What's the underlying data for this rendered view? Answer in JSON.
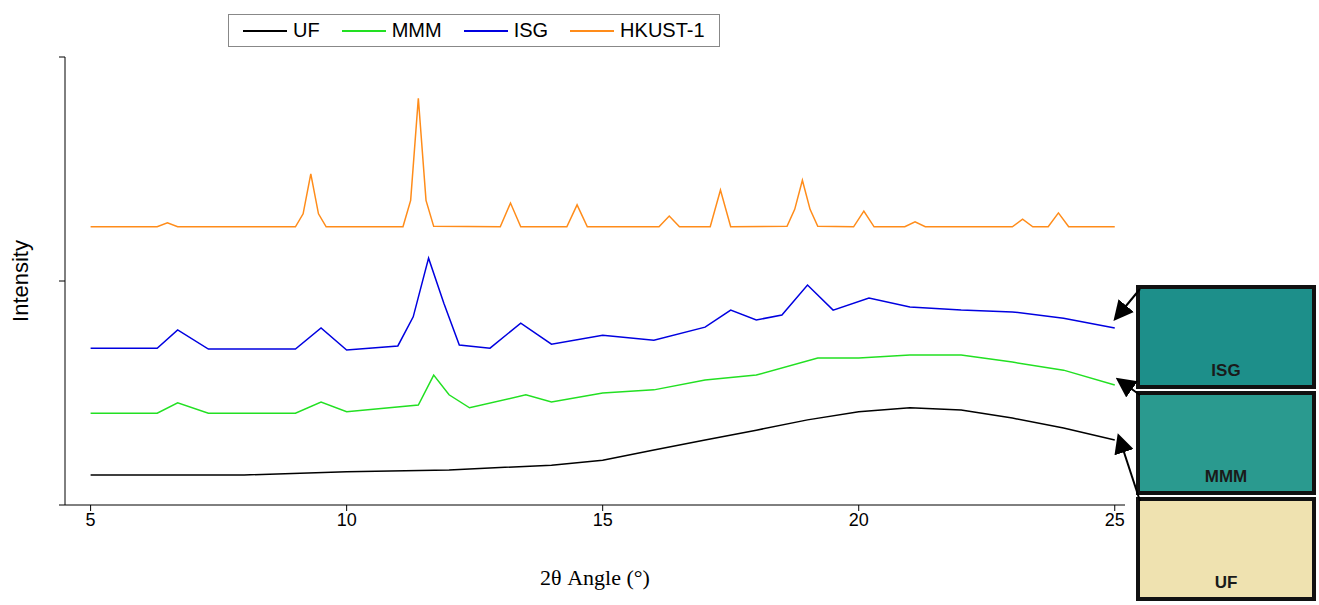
{
  "chart_data": {
    "type": "line",
    "x_label": "2θ Angle  (°)",
    "y_label": "Intensity",
    "xlim": [
      4.5,
      25.2
    ],
    "xticks": [
      5,
      10,
      15,
      20,
      25
    ],
    "ylim": [
      0,
      100
    ],
    "yticks": [
      0,
      50,
      100
    ],
    "tick_labels": "x",
    "legend": "top",
    "grid": false,
    "series": [
      {
        "name": "UF",
        "color": "#000000",
        "x": [
          5,
          8,
          10,
          12,
          14,
          15,
          16,
          17,
          18,
          19,
          20,
          21,
          22,
          23,
          24,
          25
        ],
        "values": [
          6.7,
          6.7,
          7.4,
          7.8,
          8.9,
          10.0,
          12.3,
          14.5,
          16.7,
          19.0,
          20.8,
          21.7,
          21.2,
          19.4,
          17.2,
          14.5
        ]
      },
      {
        "name": "MMM",
        "color": "#22e022",
        "x": [
          5,
          6.3,
          6.7,
          7.3,
          9.0,
          9.5,
          10.0,
          11.4,
          11.7,
          12.0,
          12.4,
          13.5,
          14.0,
          15.0,
          16.0,
          17.0,
          18.0,
          19.2,
          20.0,
          21.0,
          22.0,
          23.0,
          24.0,
          25.0
        ],
        "values": [
          20.5,
          20.5,
          22.8,
          20.5,
          20.5,
          23.0,
          20.8,
          22.3,
          29.0,
          24.6,
          21.7,
          24.6,
          23.0,
          25.0,
          25.7,
          27.9,
          29.0,
          32.8,
          32.8,
          33.5,
          33.5,
          31.9,
          30.1,
          26.8
        ]
      },
      {
        "name": "ISG",
        "color": "#0000e0",
        "x": [
          5,
          6.3,
          6.7,
          7.3,
          9.0,
          9.5,
          10.0,
          11.0,
          11.3,
          11.6,
          11.9,
          12.2,
          12.8,
          13.4,
          14.0,
          15.0,
          16.0,
          17.0,
          17.5,
          18.0,
          18.5,
          19.0,
          19.5,
          20.2,
          21.0,
          22.0,
          23.0,
          24.0,
          25.0
        ],
        "values": [
          35.0,
          35.0,
          39.1,
          34.8,
          34.8,
          39.5,
          34.6,
          35.5,
          42.0,
          55.1,
          45.0,
          35.7,
          35.0,
          40.6,
          35.9,
          37.9,
          36.8,
          39.7,
          43.5,
          41.3,
          42.4,
          49.1,
          43.5,
          46.2,
          44.2,
          43.5,
          43.1,
          41.7,
          39.5
        ]
      },
      {
        "name": "HKUST-1",
        "color": "#ff8c1a",
        "x": [
          5,
          6.3,
          6.5,
          6.7,
          9.0,
          9.15,
          9.3,
          9.45,
          9.6,
          11.1,
          11.25,
          11.4,
          11.55,
          11.7,
          13.0,
          13.2,
          13.4,
          14.3,
          14.5,
          14.7,
          16.1,
          16.3,
          16.5,
          17.1,
          17.3,
          17.5,
          18.6,
          18.75,
          18.9,
          19.05,
          19.2,
          19.9,
          20.1,
          20.3,
          20.9,
          21.1,
          21.3,
          23.0,
          23.2,
          23.4,
          23.7,
          23.9,
          24.1,
          25
        ],
        "values": [
          62.1,
          62.1,
          63.0,
          62.1,
          62.1,
          65.0,
          73.9,
          65.0,
          62.1,
          62.1,
          68.0,
          90.8,
          68.0,
          62.2,
          62.1,
          67.4,
          62.1,
          62.1,
          67.0,
          62.1,
          62.1,
          64.5,
          62.1,
          62.1,
          70.3,
          62.1,
          62.2,
          66.0,
          72.5,
          66.0,
          62.2,
          62.1,
          65.6,
          62.1,
          62.1,
          63.2,
          62.1,
          62.1,
          63.8,
          62.1,
          62.1,
          65.2,
          62.1,
          62.1
        ]
      }
    ],
    "images": [
      {
        "label": "ISG",
        "color": "#1d8f8a"
      },
      {
        "label": "MMM",
        "color": "#2a9a8f"
      },
      {
        "label": "UF",
        "color": "#efe2b0"
      }
    ]
  }
}
